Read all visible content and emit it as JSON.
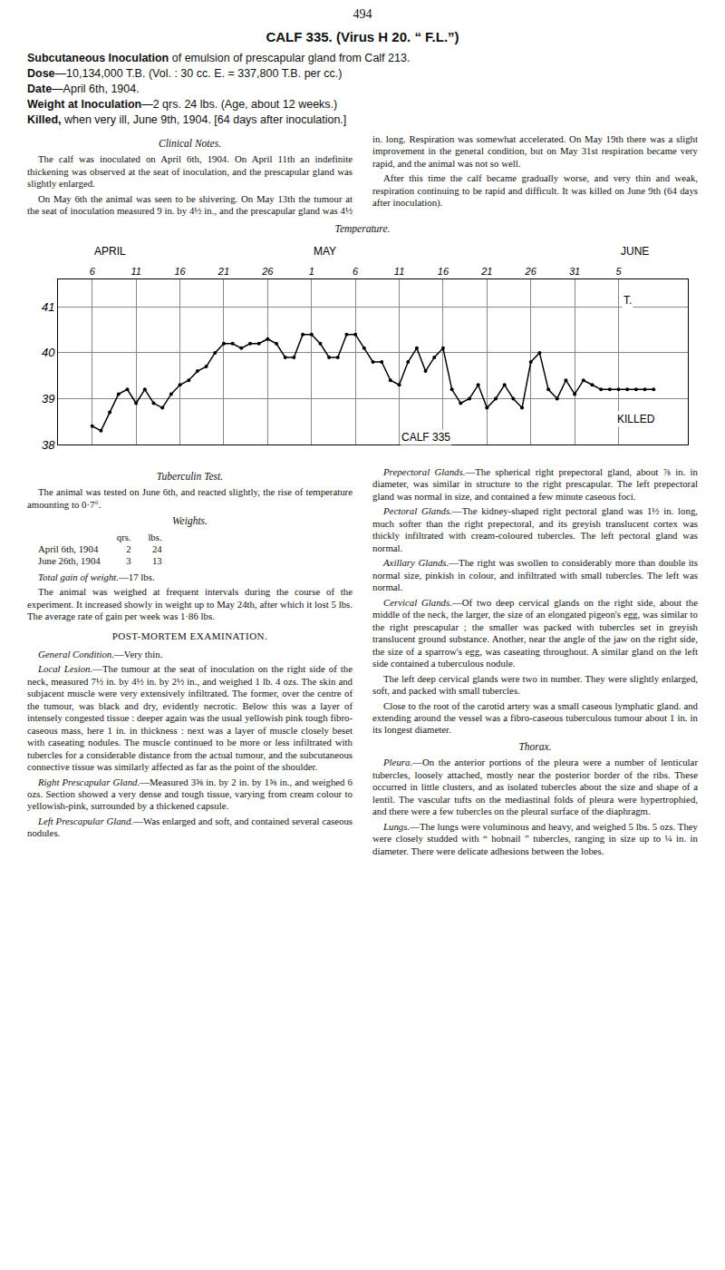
{
  "page_number": "494",
  "title": "CALF 335. (Virus H 20. “ F.L.”)",
  "summary": [
    {
      "lead": "Subcutaneous Inoculation",
      "text": " of emulsion of prescapular gland from Calf 213."
    },
    {
      "lead": "Dose",
      "text": "—10,134,000 T.B.  (Vol. : 30 cc.  E. = 337,800 T.B. per cc.)"
    },
    {
      "lead": "Date",
      "text": "—April 6th, 1904."
    },
    {
      "lead": "Weight at Inoculation",
      "text": "—2 qrs. 24 lbs.  (Age, about 12 weeks.)"
    },
    {
      "lead": "Killed,",
      "text": " when very ill, June 9th, 1904.  [64 days after inoculation.]"
    }
  ],
  "clinical": {
    "heading": "Clinical Notes.",
    "paragraphs": [
      "The calf was inoculated on April 6th, 1904. On April 11th an indefinite thickening was observed at the seat of inoculation, and the prescapular gland was slightly enlarged.",
      "On May 6th the animal was seen to be shivering. On May 13th the tumour at the seat of inoculation measured 9 in. by 4½ in., and the prescapular gland was 4½ in. long. Respiration was somewhat accelerated. On May 19th there was a slight improvement in the general condition, but on May 31st respiration became very rapid, and the animal was not so well.",
      "After this time the calf became gradually worse, and very thin and weak, respiration continuing to be rapid and difficult. It was killed on June 9th (64 days after inoculation)."
    ]
  },
  "chart_caption": "Temperature.",
  "chart_data": {
    "type": "line",
    "categories": [
      "6",
      null,
      null,
      null,
      null,
      "11",
      null,
      null,
      null,
      null,
      "16",
      null,
      null,
      null,
      null,
      "21",
      null,
      null,
      null,
      null,
      "26",
      null,
      null,
      null,
      null,
      "1",
      null,
      null,
      null,
      null,
      "6",
      null,
      null,
      null,
      null,
      "11",
      null,
      null,
      null,
      null,
      "16",
      null,
      null,
      null,
      null,
      "21",
      null,
      null,
      null,
      null,
      "26",
      null,
      null,
      null,
      null,
      "31",
      null,
      null,
      null,
      null,
      "5",
      null,
      null,
      null,
      null
    ],
    "values": [
      38.4,
      38.3,
      38.7,
      39.1,
      39.2,
      38.9,
      39.2,
      38.9,
      38.8,
      39.1,
      39.3,
      39.4,
      39.6,
      39.7,
      40.0,
      40.2,
      40.2,
      40.1,
      40.2,
      40.2,
      40.3,
      40.2,
      39.9,
      39.9,
      40.4,
      40.4,
      40.2,
      39.9,
      39.9,
      40.4,
      40.4,
      40.1,
      39.8,
      39.8,
      39.4,
      39.3,
      39.8,
      40.1,
      39.6,
      39.9,
      40.1,
      39.2,
      38.9,
      39.0,
      39.3,
      38.8,
      39.0,
      39.3,
      39.0,
      38.8,
      39.8,
      40.0,
      39.2,
      39.0,
      39.4,
      39.1,
      39.4,
      39.3,
      39.2,
      39.2,
      39.2,
      39.2,
      39.2,
      39.2,
      39.2
    ],
    "color": "#000000",
    "marker": "circle",
    "ylim": [
      38,
      41.6
    ],
    "yticks": [
      38,
      39,
      40,
      41
    ],
    "grid": true,
    "month_labels": [
      {
        "text": "APRIL",
        "x": 0
      },
      {
        "text": "MAY",
        "x": 25
      },
      {
        "text": "JUNE",
        "x": 60
      }
    ],
    "annotations": [
      {
        "text": "CALF 335",
        "x": 38,
        "y": 38.15
      },
      {
        "text": "KILLED",
        "x": 62,
        "y": 38.55
      },
      {
        "text": "T.",
        "x": 61,
        "y": 41.15
      }
    ]
  },
  "sections": [
    {
      "kind": "heading",
      "text": "Tuberculin Test."
    },
    {
      "kind": "p",
      "text": "The animal was tested on June 6th, and reacted slightly, the rise of temperature amounting to 0·7°."
    },
    {
      "kind": "heading",
      "text": "Weights."
    },
    {
      "kind": "weights",
      "header": [
        "qrs.",
        "lbs."
      ],
      "rows": [
        [
          "April 6th, 1904",
          "2",
          "24"
        ],
        [
          "June 26th, 1904",
          "3",
          "13"
        ]
      ]
    },
    {
      "kind": "p",
      "lead": "Total gain of weight.",
      "text": "—17 lbs."
    },
    {
      "kind": "p",
      "text": "The animal was weighed at frequent intervals during the course of the experiment. It increased showly in weight up to May 24th, after which it lost 5 lbs. The average rate of gain per week was 1·86 lbs."
    },
    {
      "kind": "caps",
      "text": "POST-MORTEM EXAMINATION."
    },
    {
      "kind": "p",
      "lead": "General Condition.",
      "text": "—Very thin."
    },
    {
      "kind": "p",
      "lead": "Local Lesion.",
      "text": "—The tumour at the seat of inoculation on the right side of the neck, measured 7½ in. by 4½ in. by 2½ in., and weighed 1 lb. 4 ozs. The skin and subjacent muscle were very extensively infiltrated. The former, over the centre of the tumour, was black and dry, evidently necrotic. Below this was a layer of intensely congested tissue : deeper again was the usual yellowish pink tough fibro-caseous mass, here 1 in. in thickness : next was a layer of muscle closely beset with caseating nodules. The muscle continued to be more or less infiltrated with tubercles for a considerable distance from the actual tumour, and the subcutaneous connective tissue was similarly affected as far as the point of the shoulder."
    },
    {
      "kind": "p",
      "lead": "Right Prescapular Gland.",
      "text": "—Measured 3⅝ in. by 2 in. by 1⅝ in., and weighed 6 ozs. Section showed a very dense and tough tissue, varying from cream colour to yellowish-pink, surrounded by a thickened capsule."
    },
    {
      "kind": "p",
      "lead": "Left Prescapular Gland.",
      "text": "—Was enlarged and soft, and contained several caseous nodules."
    },
    {
      "kind": "p",
      "lead": "Prepectoral Glands.",
      "text": "—The spherical right prepectoral gland, about ⅞ in. in diameter, was similar in structure to the right prescapular. The left prepectoral gland was normal in size, and contained a few minute caseous foci."
    },
    {
      "kind": "p",
      "lead": "Pectoral Glands.",
      "text": "—The kidney-shaped right pectoral gland was 1½ in. long, much softer than the right prepectoral, and its greyish translucent cortex was thickly infiltrated with cream-coloured tubercles. The left pectoral gland was normal."
    },
    {
      "kind": "p",
      "lead": "Axillary Glands.",
      "text": "—The right was swollen to considerably more than double its normal size, pinkish in colour, and infiltrated with small tubercles. The left was normal."
    },
    {
      "kind": "p",
      "lead": "Cervical Glands.",
      "text": "—Of two deep cervical glands on the right side, about the middle of the neck, the larger, the size of an elongated pigeon's egg, was similar to the right prescapular ; the smaller was packed with tubercles set in greyish translucent ground substance. Another, near the angle of the jaw on the right side, the size of a sparrow's egg, was caseating throughout. A similar gland on the left side contained a tuberculous nodule."
    },
    {
      "kind": "p",
      "text": "The left deep cervical glands were two in number. They were slightly enlarged, soft, and packed with small tubercles."
    },
    {
      "kind": "p",
      "text": "Close to the root of the carotid artery was a small caseous lymphatic gland. and extending around the vessel was a fibro-caseous tuberculous tumour about 1 in. in its longest diameter."
    },
    {
      "kind": "heading",
      "text": "Thorax."
    },
    {
      "kind": "p",
      "lead": "Pleura.",
      "text": "—On the anterior portions of the pleura were a number of lenticular tubercles, loosely attached, mostly near the posterior border of the ribs. These occurred in little clusters, and as isolated tubercles about the size and shape of a lentil. The vascular tufts on the mediastinal folds of pleura were hypertrophied, and there were a few tubercles on the pleural surface of the diaphragm."
    },
    {
      "kind": "p",
      "lead": "Lungs.",
      "text": "—The lungs were voluminous and heavy, and weighed 5 lbs. 5 ozs. They were closely studded with “ hobnail ” tubercles, ranging in size up to ¼ in. in diameter. There were delicate adhesions between the lobes."
    }
  ]
}
